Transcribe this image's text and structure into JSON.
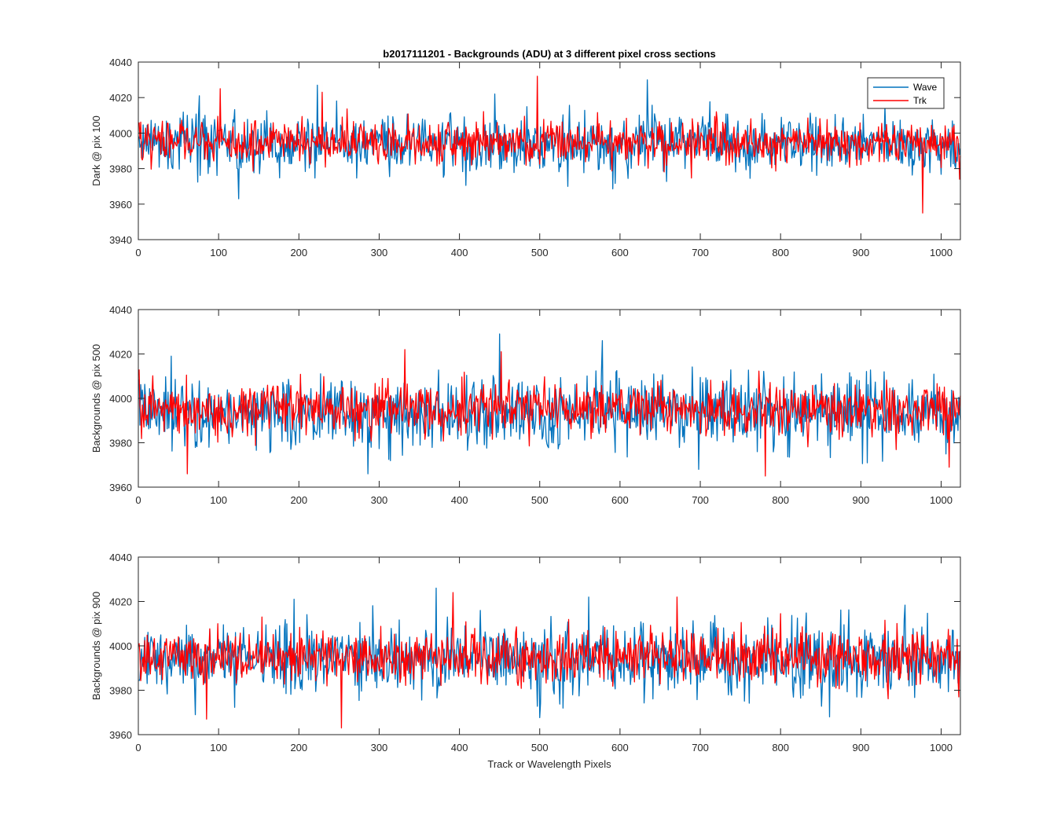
{
  "title": "b2017111201 - Backgrounds (ADU) at 3 different pixel cross sections",
  "xlabel": "Track or Wavelength Pixels",
  "colors": {
    "wave": "#0072BD",
    "trk": "#FF0000",
    "axis": "#262626",
    "grid": "#262626"
  },
  "legend": {
    "entries": [
      "Wave",
      "Trk"
    ],
    "location": "top-right (top panel)"
  },
  "chart_data": [
    {
      "type": "line",
      "ylabel": "Dark @ pix 100",
      "xlim": [
        0,
        1024
      ],
      "ylim": [
        3940,
        4040
      ],
      "xticks": [
        0,
        100,
        200,
        300,
        400,
        500,
        600,
        700,
        800,
        900,
        1000
      ],
      "yticks": [
        3940,
        3960,
        3980,
        4000,
        4020,
        4040
      ],
      "series": [
        {
          "name": "Wave",
          "mean": 3994,
          "spread": 8,
          "n": 1024,
          "peaks": [
            [
              75,
              4021
            ],
            [
              124,
              3963
            ],
            [
              222,
              4027
            ],
            [
              633,
              4030
            ],
            [
              443,
              4022
            ],
            [
              1015,
              4005
            ]
          ]
        },
        {
          "name": "Trk",
          "mean": 3995,
          "spread": 6,
          "n": 1024,
          "peaks": [
            [
              101,
              4025
            ],
            [
              228,
              4023
            ],
            [
              496,
              4032
            ],
            [
              976,
              3955
            ],
            [
              1022,
              3974
            ],
            [
              0,
              4006
            ]
          ]
        }
      ]
    },
    {
      "type": "line",
      "ylabel": "Backgrounds @ pix 500",
      "xlim": [
        0,
        1024
      ],
      "ylim": [
        3960,
        4040
      ],
      "xticks": [
        0,
        100,
        200,
        300,
        400,
        500,
        600,
        700,
        800,
        900,
        1000
      ],
      "yticks": [
        3960,
        3980,
        4000,
        4020,
        4040
      ],
      "series": [
        {
          "name": "Wave",
          "mean": 3994,
          "spread": 8,
          "n": 1024,
          "peaks": [
            [
              449,
              4029
            ],
            [
              577,
              4026
            ],
            [
              285,
              3966
            ],
            [
              697,
              3968
            ],
            [
              40,
              4019
            ]
          ]
        },
        {
          "name": "Trk",
          "mean": 3995,
          "spread": 6,
          "n": 1024,
          "peaks": [
            [
              60,
              3966
            ],
            [
              331,
              4022
            ],
            [
              451,
              4021
            ],
            [
              780,
              3965
            ],
            [
              1009,
              3969
            ],
            [
              0,
              4013
            ]
          ]
        }
      ]
    },
    {
      "type": "line",
      "ylabel": "Backgrounds @ pix 900",
      "xlim": [
        0,
        1024
      ],
      "ylim": [
        3960,
        4040
      ],
      "xticks": [
        0,
        100,
        200,
        300,
        400,
        500,
        600,
        700,
        800,
        900,
        1000
      ],
      "yticks": [
        3960,
        3980,
        4000,
        4020,
        4040
      ],
      "series": [
        {
          "name": "Wave",
          "mean": 3994,
          "spread": 8,
          "n": 1024,
          "peaks": [
            [
              370,
              4026
            ],
            [
              860,
              3968
            ],
            [
              193,
              4021
            ],
            [
              560,
              4022
            ],
            [
              70,
              3969
            ]
          ]
        },
        {
          "name": "Trk",
          "mean": 3995,
          "spread": 6,
          "n": 1024,
          "peaks": [
            [
              252,
              3963
            ],
            [
              84,
              3967
            ],
            [
              391,
              4024
            ],
            [
              670,
              4022
            ],
            [
              1021,
              3977
            ]
          ]
        }
      ]
    }
  ]
}
